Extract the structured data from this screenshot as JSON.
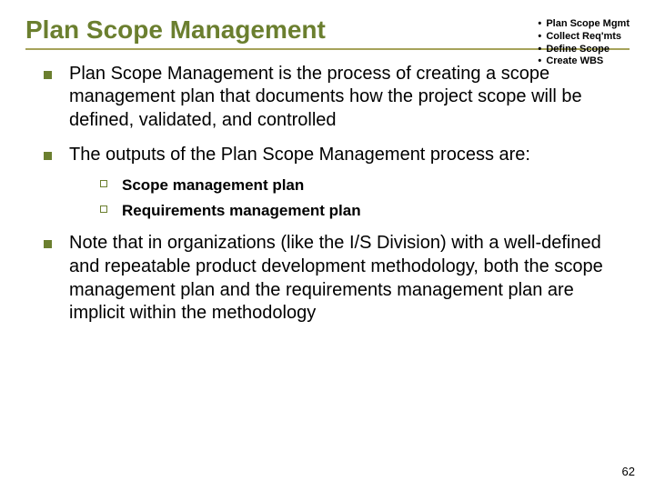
{
  "colors": {
    "title": "#6b7f2f",
    "rule": "#a6a35a",
    "bullet1": "#6b7f2f",
    "bullet2_border": "#6b7f2f",
    "text": "#000000",
    "nav_text": "#000000",
    "background": "#ffffff"
  },
  "fontsizes": {
    "title": 28,
    "body": 20,
    "sub": 17,
    "nav": 11,
    "pagenum": 13
  },
  "title": "Plan Scope Management",
  "nav": [
    "Plan Scope Mgmt",
    "Collect Req'mts",
    "Define Scope",
    "Create WBS"
  ],
  "bullets": [
    "Plan Scope Management is the process of creating a scope management plan that documents how the project scope will be defined, validated, and controlled",
    "The outputs of the Plan Scope Management process are:",
    "Note that in organizations (like the I/S Division) with a well-defined and repeatable product development methodology, both the scope management plan and the requirements management plan are implicit within the methodology"
  ],
  "sub_bullets": [
    "Scope management plan",
    "Requirements management plan"
  ],
  "page_number": "62"
}
